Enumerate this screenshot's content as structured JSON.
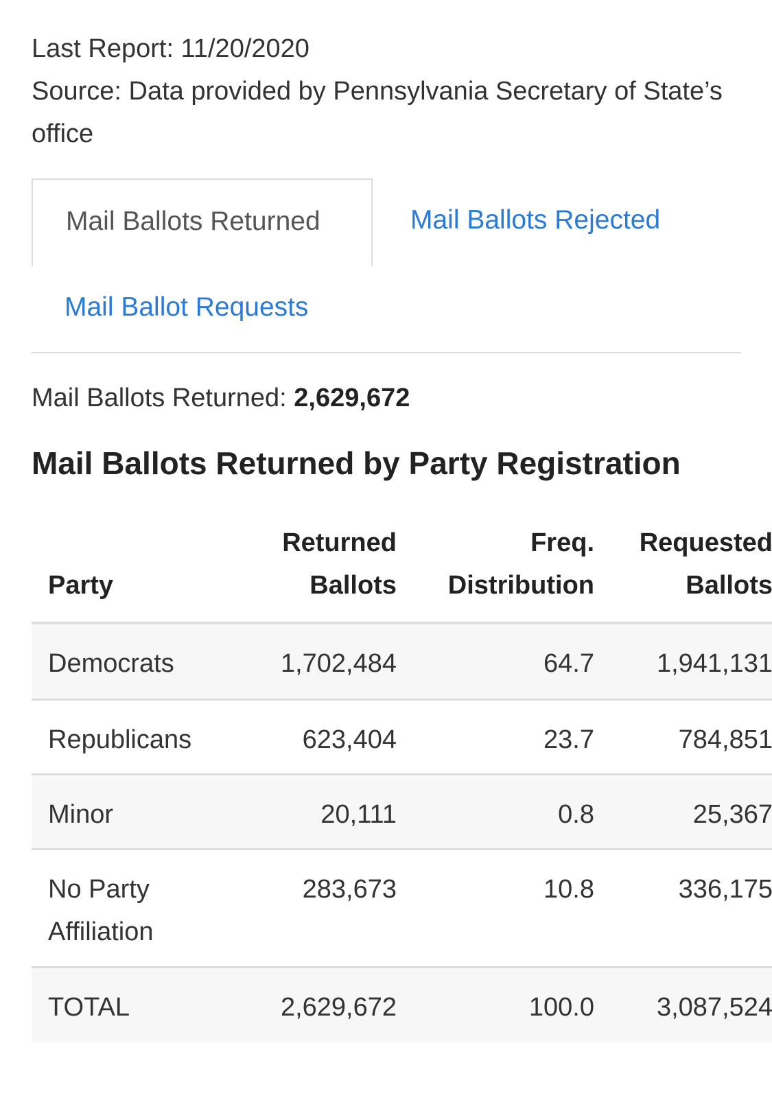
{
  "report": {
    "last_report": "Last Report: 11/20/2020",
    "source": "Source: Data provided by Pennsylvania Secretary of State’s office"
  },
  "tabs": [
    {
      "label": "Mail Ballots Returned",
      "active": true
    },
    {
      "label": "Mail Ballots Rejected",
      "active": false
    },
    {
      "label": "Mail Ballot Requests",
      "active": false
    }
  ],
  "summary": {
    "label": "Mail Ballots Returned: ",
    "value": "2,629,672"
  },
  "section_title": "Mail Ballots Returned by Party Registration",
  "colors": {
    "link": "#2a7bd6",
    "text": "#333333",
    "border": "#dddddd",
    "row_shade": "#f7f7f7"
  },
  "table": {
    "headers": {
      "party": "Party",
      "returned_line1": "Returned",
      "returned_line2": "Ballots",
      "freq_line1": "Freq.",
      "freq_line2": "Distribution",
      "requested_line1": "Requested",
      "requested_line2": "Ballots"
    },
    "rows": [
      {
        "party": "Democrats",
        "returned": "1,702,484",
        "freq": "64.7",
        "requested": "1,941,131"
      },
      {
        "party": "Republicans",
        "returned": "623,404",
        "freq": "23.7",
        "requested": "784,851"
      },
      {
        "party": "Minor",
        "returned": "20,111",
        "freq": "0.8",
        "requested": "25,367"
      },
      {
        "party": "No Party Affiliation",
        "returned": "283,673",
        "freq": "10.8",
        "requested": "336,175"
      },
      {
        "party": "TOTAL",
        "returned": "2,629,672",
        "freq": "100.0",
        "requested": "3,087,524"
      }
    ]
  }
}
